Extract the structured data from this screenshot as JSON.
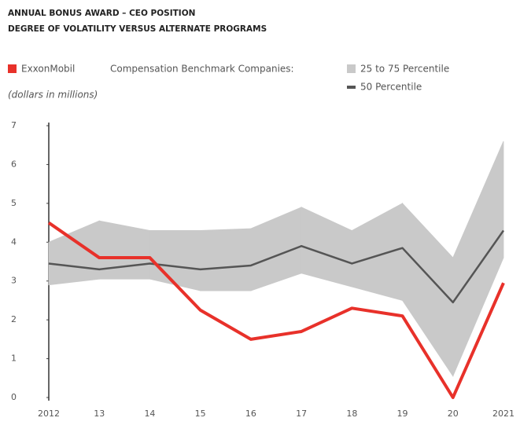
{
  "chart_data": {
    "type": "line",
    "title": "ANNUAL BONUS AWARD – CEO POSITION",
    "subtitle": "DEGREE OF VOLATILITY VERSUS ALTERNATE PROGRAMS",
    "legend_title": "Compensation Benchmark Companies:",
    "note": "(dollars in millions)",
    "categories": [
      "2012",
      "13",
      "14",
      "15",
      "16",
      "17",
      "18",
      "19",
      "20",
      "2021"
    ],
    "series": [
      {
        "name": "ExxonMobil",
        "color": "#e8312a",
        "values": [
          4.5,
          3.6,
          3.6,
          2.25,
          1.5,
          1.7,
          2.3,
          2.1,
          0,
          2.95
        ]
      },
      {
        "name": "25 to 75 Percentile",
        "color": "#c9c9c9",
        "low": [
          2.9,
          3.05,
          3.05,
          2.75,
          2.75,
          3.2,
          2.85,
          2.5,
          0.55,
          3.6
        ],
        "high": [
          4.0,
          4.55,
          4.3,
          4.3,
          4.35,
          4.9,
          4.3,
          5.0,
          3.6,
          6.6
        ]
      },
      {
        "name": "50 Percentile",
        "color": "#555555",
        "values": [
          3.45,
          3.3,
          3.45,
          3.3,
          3.4,
          3.9,
          3.45,
          3.85,
          2.45,
          4.3
        ]
      }
    ],
    "ylim": [
      0,
      7
    ],
    "yticks": [
      0,
      1,
      2,
      3,
      4,
      5,
      6,
      7
    ]
  }
}
